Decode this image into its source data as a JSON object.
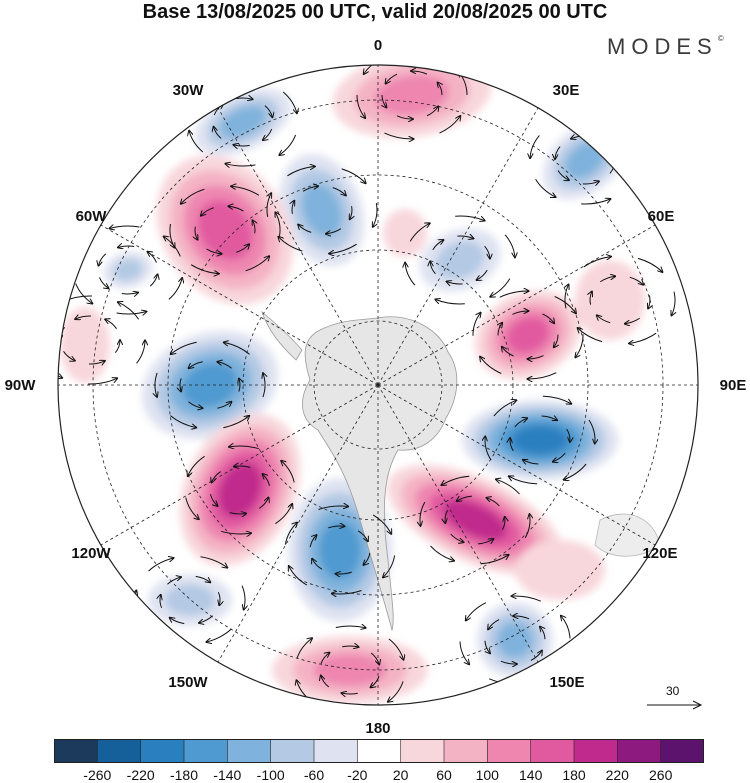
{
  "title": "Base 13/08/2025 00 UTC, valid 20/08/2025 00 UTC",
  "brand": "MODES",
  "brand_mark": "©",
  "longitude_labels": [
    "0",
    "30E",
    "60E",
    "90E",
    "120E",
    "150E",
    "180",
    "150W",
    "120W",
    "90W",
    "60W",
    "30W"
  ],
  "wind_reference": {
    "value": "30"
  },
  "colorbar": {
    "ticks": [
      "-260",
      "-220",
      "-180",
      "-140",
      "-100",
      "-60",
      "-20",
      "20",
      "60",
      "100",
      "140",
      "180",
      "220",
      "260"
    ],
    "colors": [
      "#1b3a5c",
      "#15609a",
      "#2a7fbf",
      "#4f9ad0",
      "#7fb2dc",
      "#b3c9e4",
      "#dfe3f1",
      "#ffffff",
      "#f8d7dc",
      "#f4b3c5",
      "#ee86b0",
      "#e15aa0",
      "#c02a8c",
      "#8d1a7e",
      "#5c136d"
    ]
  },
  "colors": {
    "land": "#e6e6e6",
    "coast": "#9a9a9a"
  }
}
